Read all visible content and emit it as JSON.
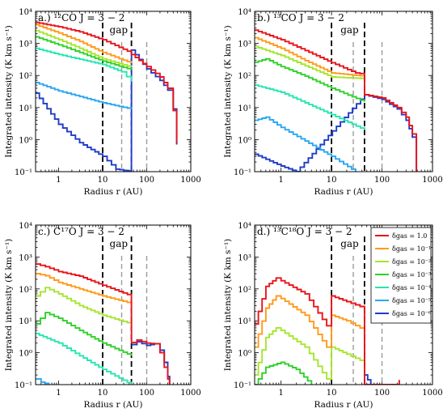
{
  "figure": {
    "legend_title_prefix": "δ",
    "legend_title_sub": "gas",
    "colors": {
      "red": "#e8141b",
      "orange": "#ff9a1a",
      "yellowgreen": "#a6e52e",
      "green": "#2fd12a",
      "teal": "#25e6b0",
      "sky": "#2aa6f0",
      "blue": "#1f3cc7"
    }
  },
  "chart_data": [
    {
      "type": "line",
      "panel": "a.)",
      "title": "¹²CO J = 3 − 2",
      "xlabel": "Radius r (AU)",
      "ylabel": "Integrated intensity (K km s⁻¹)",
      "xscale": "log",
      "yscale": "log",
      "xlim": [
        0.3,
        1000
      ],
      "ylim": [
        0.1,
        10000
      ],
      "xticks": [
        "1",
        "10",
        "100",
        "1000"
      ],
      "yticks": [
        "10⁻¹",
        "10⁰",
        "10¹",
        "10²",
        "10³",
        "10⁴"
      ],
      "annotations": {
        "gap_label": "gap",
        "gap_edges": [
          10,
          45
        ],
        "dashed_grey": [
          27,
          100
        ]
      },
      "series": [
        {
          "name": "δgas = 1.0",
          "color": "#e8141b",
          "x": [
            0.3,
            1,
            3,
            10,
            45,
            45.1,
            100,
            200,
            300,
            400,
            480
          ],
          "y": [
            4500,
            3300,
            2300,
            1300,
            500,
            450,
            190,
            90,
            40,
            8,
            0.8
          ]
        },
        {
          "name": "δgas = 10⁻¹",
          "color": "#ff9a1a",
          "x": [
            0.3,
            1,
            3,
            10,
            45
          ],
          "y": [
            3800,
            2100,
            1150,
            520,
            240
          ]
        },
        {
          "name": "δgas = 10⁻²",
          "color": "#a6e52e",
          "x": [
            0.3,
            1,
            3,
            10,
            45
          ],
          "y": [
            2500,
            1300,
            700,
            330,
            180
          ]
        },
        {
          "name": "δgas = 10⁻³",
          "color": "#2fd12a",
          "x": [
            0.3,
            1,
            3,
            10,
            45
          ],
          "y": [
            1600,
            900,
            520,
            280,
            150
          ]
        },
        {
          "name": "δgas = 10⁻⁴",
          "color": "#25e6b0",
          "x": [
            0.3,
            1,
            3,
            10,
            27,
            45
          ],
          "y": [
            700,
            450,
            320,
            220,
            130,
            65
          ]
        },
        {
          "name": "δgas = 10⁻⁵",
          "color": "#2aa6f0",
          "x": [
            0.3,
            1,
            3,
            10,
            45
          ],
          "y": [
            60,
            33,
            22,
            14,
            9
          ]
        },
        {
          "name": "δgas = 10⁻⁶",
          "color": "#1f3cc7",
          "x": [
            0.3,
            1,
            3,
            10,
            20,
            45,
            45.1,
            100,
            200,
            300,
            400,
            480
          ],
          "y": [
            28,
            3,
            0.8,
            0.3,
            0.12,
            0.1,
            620,
            160,
            70,
            35,
            9,
            0.7
          ]
        }
      ]
    },
    {
      "type": "line",
      "panel": "b.)",
      "title": "¹³CO J = 3 − 2",
      "xlabel": "Radius r (AU)",
      "ylabel": "Integrated intensity (K km s⁻¹)",
      "xscale": "log",
      "yscale": "log",
      "xlim": [
        0.3,
        1000
      ],
      "ylim": [
        0.1,
        10000
      ],
      "xticks": [
        "1",
        "10",
        "100",
        "1000"
      ],
      "yticks": [
        "10⁻¹",
        "10⁰",
        "10¹",
        "10²",
        "10³",
        "10⁴"
      ],
      "annotations": {
        "gap_label": "gap",
        "gap_edges": [
          10,
          45
        ],
        "dashed_grey": [
          27,
          100
        ]
      },
      "series": [
        {
          "name": "δgas = 1.0",
          "color": "#e8141b",
          "x": [
            0.3,
            1,
            3,
            10,
            30,
            45,
            45.1,
            100,
            200,
            300,
            400,
            480
          ],
          "y": [
            2600,
            1300,
            600,
            250,
            120,
            110,
            25,
            20,
            10,
            5,
            1.5,
            0.1
          ]
        },
        {
          "name": "δgas = 10⁻¹",
          "color": "#ff9a1a",
          "x": [
            0.3,
            1,
            3,
            10,
            45
          ],
          "y": [
            1500,
            700,
            290,
            120,
            95
          ]
        },
        {
          "name": "δgas = 10⁻²",
          "color": "#a6e52e",
          "x": [
            0.3,
            1,
            3,
            10,
            45
          ],
          "y": [
            800,
            420,
            200,
            90,
            80
          ]
        },
        {
          "name": "δgas = 10⁻³",
          "color": "#2fd12a",
          "x": [
            0.3,
            0.5,
            1,
            3,
            10,
            45
          ],
          "y": [
            260,
            330,
            190,
            95,
            40,
            15
          ]
        },
        {
          "name": "δgas = 10⁻⁴",
          "color": "#25e6b0",
          "x": [
            0.3,
            1,
            3,
            10,
            45
          ],
          "y": [
            50,
            30,
            14,
            6,
            2
          ]
        },
        {
          "name": "δgas = 10⁻⁵",
          "color": "#2aa6f0",
          "x": [
            0.3,
            0.5,
            1,
            3,
            10,
            30
          ],
          "y": [
            4,
            5,
            2.4,
            0.9,
            0.3,
            0.1
          ]
        },
        {
          "name": "δgas = 10⁻⁶",
          "color": "#1f3cc7",
          "x": [
            0.3,
            1,
            2,
            45.1,
            100,
            200,
            300,
            400,
            480
          ],
          "y": [
            0.35,
            0.15,
            0.1,
            25,
            18,
            9,
            4,
            1.2,
            0.1
          ]
        }
      ]
    },
    {
      "type": "line",
      "panel": "c.)",
      "title": "C¹⁷O J = 3 − 2",
      "xlabel": "Radius r (AU)",
      "ylabel": "Integrated intensity (K km s⁻¹)",
      "xscale": "log",
      "yscale": "log",
      "xlim": [
        0.3,
        1000
      ],
      "ylim": [
        0.1,
        10000
      ],
      "xticks": [
        "1",
        "10",
        "100",
        "1000"
      ],
      "yticks": [
        "10⁻¹",
        "10⁰",
        "10¹",
        "10²",
        "10³",
        "10⁴"
      ],
      "annotations": {
        "gap_label": "gap",
        "gap_edges": [
          10,
          45
        ],
        "dashed_grey": [
          27,
          100
        ]
      },
      "series": [
        {
          "name": "δgas = 1.0",
          "color": "#e8141b",
          "x": [
            0.3,
            0.5,
            1,
            3,
            10,
            45,
            45.1,
            60,
            100,
            150,
            200,
            250,
            300,
            330
          ],
          "y": [
            600,
            500,
            350,
            250,
            130,
            60,
            2.1,
            2.5,
            2.0,
            1.9,
            1.0,
            0.35,
            0.15,
            0.1
          ]
        },
        {
          "name": "δgas = 10⁻¹",
          "color": "#ff9a1a",
          "x": [
            0.3,
            0.5,
            1,
            3,
            10,
            45
          ],
          "y": [
            300,
            260,
            160,
            100,
            60,
            35
          ]
        },
        {
          "name": "δgas = 10⁻²",
          "color": "#a6e52e",
          "x": [
            0.3,
            0.5,
            1,
            3,
            10,
            45
          ],
          "y": [
            60,
            110,
            70,
            30,
            15,
            8
          ]
        },
        {
          "name": "δgas = 10⁻³",
          "color": "#2fd12a",
          "x": [
            0.3,
            0.5,
            1,
            3,
            10,
            45
          ],
          "y": [
            8,
            18,
            12,
            5,
            2,
            0.8
          ]
        },
        {
          "name": "δgas = 10⁻⁴",
          "color": "#25e6b0",
          "x": [
            0.3,
            1,
            3,
            10,
            45
          ],
          "y": [
            4,
            2,
            0.8,
            0.3,
            0.1
          ]
        },
        {
          "name": "δgas = 10⁻⁵",
          "color": "#2aa6f0",
          "x": [
            0.3,
            0.4,
            0.6
          ],
          "y": [
            0.15,
            0.12,
            0.1
          ]
        },
        {
          "name": "δgas = 10⁻⁶",
          "color": "#1f3cc7",
          "x": [
            45.1,
            60,
            100,
            150,
            200,
            250,
            300,
            330
          ],
          "y": [
            1.8,
            2.2,
            1.7,
            1.9,
            1.2,
            0.5,
            0.18,
            0.1
          ]
        }
      ]
    },
    {
      "type": "line",
      "panel": "d.)",
      "title": "¹³C¹⁸O J = 3 − 2",
      "xlabel": "Radius r (AU)",
      "ylabel": "Integrated intensity (K km s⁻¹)",
      "xscale": "log",
      "yscale": "log",
      "xlim": [
        0.3,
        1000
      ],
      "ylim": [
        0.1,
        10000
      ],
      "xticks": [
        "1",
        "10",
        "100",
        "1000"
      ],
      "yticks": [
        "10⁻¹",
        "10⁰",
        "10¹",
        "10²",
        "10³",
        "10⁴"
      ],
      "annotations": {
        "gap_label": "gap",
        "gap_edges": [
          10,
          45
        ],
        "dashed_grey": [
          27,
          100
        ]
      },
      "legend_position": "top-right",
      "series": [
        {
          "name": "δgas = 1.0",
          "color": "#e8141b",
          "x": [
            0.3,
            0.5,
            0.8,
            1,
            3,
            8,
            10,
            20,
            45,
            45.1,
            200,
            220
          ],
          "y": [
            8,
            120,
            220,
            180,
            70,
            7,
            60,
            40,
            25,
            0.1,
            0.1,
            0.14
          ]
        },
        {
          "name": "δgas = 10⁻¹",
          "color": "#ff9a1a",
          "x": [
            0.3,
            0.5,
            0.8,
            1,
            3,
            8,
            10,
            20,
            45
          ],
          "y": [
            1.5,
            25,
            60,
            50,
            15,
            1.5,
            15,
            10,
            5
          ]
        },
        {
          "name": "δgas = 10⁻²",
          "color": "#a6e52e",
          "x": [
            0.3,
            0.5,
            0.8,
            1,
            3,
            8,
            10,
            20,
            45
          ],
          "y": [
            0.2,
            3,
            6,
            5,
            1.5,
            0.15,
            1.5,
            0.9,
            0.5
          ]
        },
        {
          "name": "δgas = 10⁻³",
          "color": "#2fd12a",
          "x": [
            0.3,
            0.5,
            1,
            2,
            4
          ],
          "y": [
            0.1,
            0.35,
            0.5,
            0.3,
            0.1
          ]
        },
        {
          "name": "δgas = 10⁻⁴",
          "color": "#25e6b0",
          "x": [],
          "y": []
        },
        {
          "name": "δgas = 10⁻⁵",
          "color": "#2aa6f0",
          "x": [],
          "y": []
        },
        {
          "name": "δgas = 10⁻⁶",
          "color": "#1f3cc7",
          "x": [
            45.1,
            60
          ],
          "y": [
            0.2,
            0.1
          ]
        }
      ]
    }
  ]
}
